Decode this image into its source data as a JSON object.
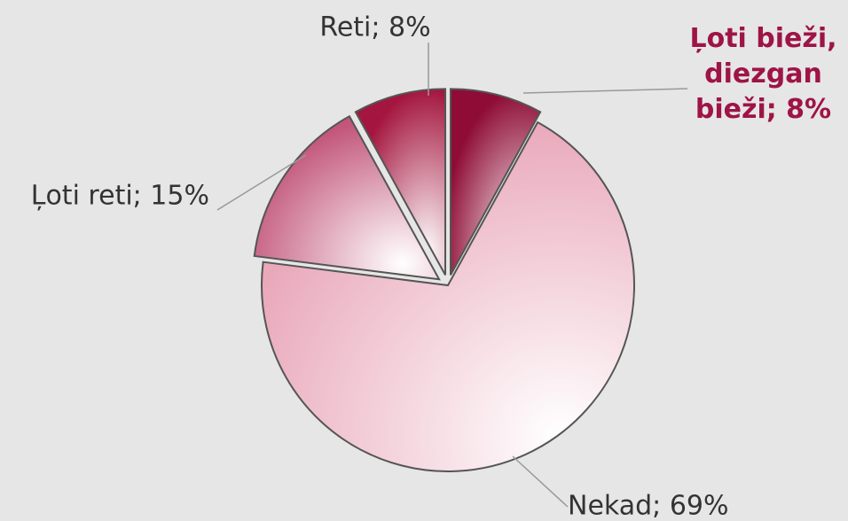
{
  "chart_data": {
    "type": "pie",
    "values": [
      8,
      69,
      15,
      8
    ],
    "value_labels": [
      "Ļoti bieži, diezgan bieži; 8%",
      "Nekad; 69%",
      "Ļoti reti; 15%",
      "Reti; 8%"
    ],
    "colors": [
      "#8e0c36",
      "#e9a9bb",
      "#c2557a",
      "#a4163f"
    ]
  }
}
